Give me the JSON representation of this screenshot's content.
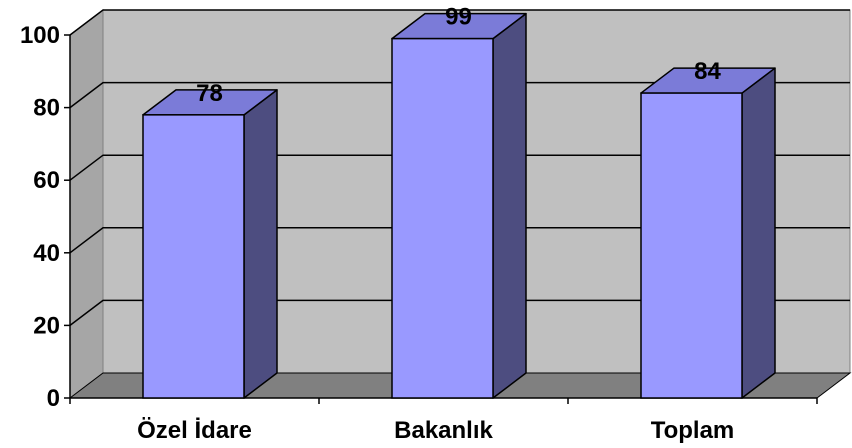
{
  "chart_data": {
    "type": "bar",
    "categories": [
      "Özel İdare",
      "Bakanlık",
      "Toplam"
    ],
    "values": [
      78,
      99,
      84
    ],
    "data_labels": [
      "78",
      "99",
      "84"
    ],
    "ylim": [
      0,
      100
    ],
    "yticks": [
      "0",
      "20",
      "40",
      "60",
      "80",
      "100"
    ],
    "grid": true,
    "legend": false,
    "style": "3d-column",
    "colors": {
      "bar_front": "#9999FF",
      "bar_top": "#7B7BD8",
      "bar_side": "#4D4D80",
      "back_wall": "#C0C0C0",
      "side_wall": "#A6A6A6",
      "floor": "#808080",
      "gridline": "#000000"
    }
  }
}
